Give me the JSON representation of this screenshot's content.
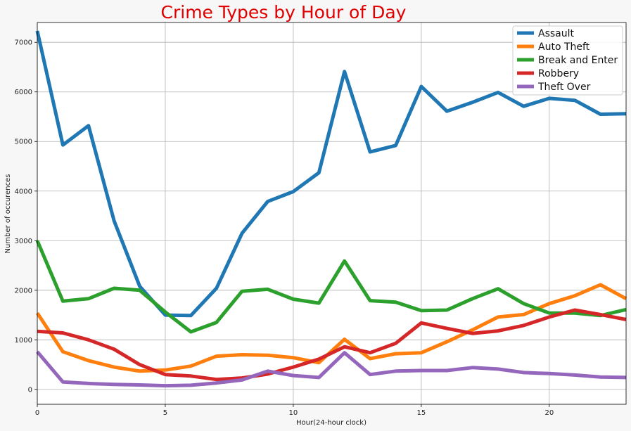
{
  "chart_data": {
    "type": "line",
    "title": "Crime Types by Hour of Day",
    "xlabel": "Hour(24-hour clock)",
    "ylabel": "Number of occurences",
    "xlim": [
      0,
      23
    ],
    "ylim": [
      -300,
      7400
    ],
    "xticks": [
      0,
      5,
      10,
      15,
      20
    ],
    "yticks": [
      0,
      1000,
      2000,
      3000,
      4000,
      5000,
      6000,
      7000
    ],
    "grid": true,
    "legend_position": "top-right",
    "x": [
      0,
      1,
      2,
      3,
      4,
      5,
      6,
      7,
      8,
      9,
      10,
      11,
      12,
      13,
      14,
      15,
      16,
      17,
      18,
      19,
      20,
      21,
      22,
      23
    ],
    "series": [
      {
        "name": "Assault",
        "color": "#1f77b4",
        "values": [
          7230,
          4930,
          5320,
          3400,
          2080,
          1500,
          1490,
          2040,
          3150,
          3790,
          3990,
          4370,
          6410,
          4790,
          4920,
          6110,
          5610,
          5790,
          5990,
          5710,
          5870,
          5830,
          5550,
          5560
        ]
      },
      {
        "name": "Auto Theft",
        "color": "#ff7f0e",
        "values": [
          1540,
          760,
          580,
          450,
          370,
          390,
          470,
          670,
          700,
          690,
          640,
          540,
          1010,
          620,
          720,
          740,
          960,
          1200,
          1460,
          1510,
          1730,
          1890,
          2110,
          1830
        ]
      },
      {
        "name": "Break and Enter",
        "color": "#2ca02c",
        "values": [
          3000,
          1780,
          1830,
          2040,
          2000,
          1560,
          1160,
          1350,
          1980,
          2020,
          1820,
          1740,
          2590,
          1790,
          1760,
          1590,
          1600,
          1830,
          2030,
          1730,
          1540,
          1540,
          1490,
          1610
        ]
      },
      {
        "name": "Robbery",
        "color": "#d62728",
        "values": [
          1170,
          1140,
          1000,
          810,
          500,
          300,
          270,
          200,
          230,
          310,
          450,
          610,
          860,
          740,
          930,
          1340,
          1230,
          1130,
          1180,
          1290,
          1460,
          1600,
          1510,
          1410
        ]
      },
      {
        "name": "Theft Over",
        "color": "#9467bd",
        "values": [
          760,
          150,
          120,
          100,
          90,
          75,
          85,
          130,
          190,
          370,
          280,
          240,
          740,
          300,
          370,
          380,
          380,
          440,
          410,
          340,
          320,
          290,
          250,
          240
        ]
      }
    ]
  }
}
